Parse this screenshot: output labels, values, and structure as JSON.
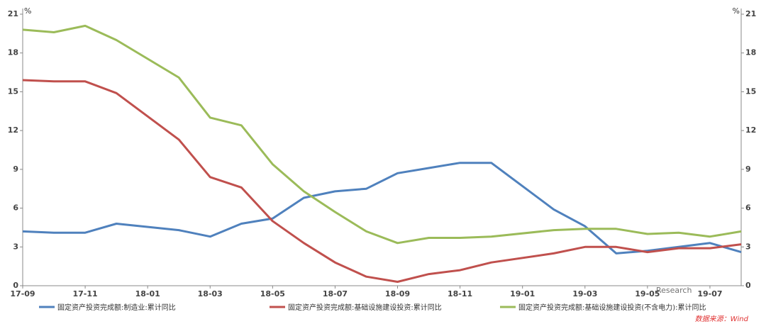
{
  "chart_data": {
    "type": "line",
    "x": [
      "17-09",
      "17-10",
      "17-11",
      "17-12",
      "18-02",
      "18-03",
      "18-04",
      "18-05",
      "18-06",
      "18-07",
      "18-08",
      "18-09",
      "18-10",
      "18-11",
      "18-12",
      "19-02",
      "19-03",
      "19-04",
      "19-05",
      "19-06",
      "19-07",
      "19-08"
    ],
    "xticks": [
      "17-09",
      "17-11",
      "18-01",
      "18-03",
      "18-05",
      "18-07",
      "18-09",
      "18-11",
      "19-01",
      "19-03",
      "19-05",
      "19-07"
    ],
    "series": [
      {
        "name": "固定资产投资完成额:制造业:累计同比",
        "color": "#4f81bd",
        "values": [
          4.2,
          4.1,
          4.1,
          4.8,
          4.3,
          3.8,
          4.8,
          5.2,
          6.8,
          7.3,
          7.5,
          8.7,
          9.1,
          9.5,
          9.5,
          5.9,
          4.6,
          2.5,
          2.7,
          3.0,
          3.3,
          2.6
        ]
      },
      {
        "name": "固定资产投资完成额:基础设施建设投资:累计同比",
        "color": "#c0504d",
        "values": [
          15.9,
          15.8,
          15.8,
          14.9,
          11.3,
          8.4,
          7.6,
          5.0,
          3.3,
          1.8,
          0.7,
          0.3,
          0.9,
          1.2,
          1.8,
          2.5,
          3.0,
          3.0,
          2.6,
          2.9,
          2.9,
          3.2
        ]
      },
      {
        "name": "固定资产投资完成额:基础设施建设投资(不含电力):累计同比",
        "color": "#9bbb59",
        "values": [
          19.8,
          19.6,
          20.1,
          19.0,
          16.1,
          13.0,
          12.4,
          9.4,
          7.3,
          5.7,
          4.2,
          3.3,
          3.7,
          3.7,
          3.8,
          4.3,
          4.4,
          4.4,
          4.0,
          4.1,
          3.8,
          4.2
        ]
      }
    ],
    "ylim": [
      0,
      21
    ],
    "yticks": [
      0,
      3,
      6,
      9,
      12,
      15,
      18,
      21
    ],
    "y_unit": "%",
    "y2lim": [
      0,
      21
    ],
    "y2ticks": [
      0,
      3,
      6,
      9,
      12,
      15,
      18,
      21
    ],
    "y2_unit": "%",
    "grid": false,
    "watermark": "Research",
    "source": "数据来源：Wind"
  }
}
